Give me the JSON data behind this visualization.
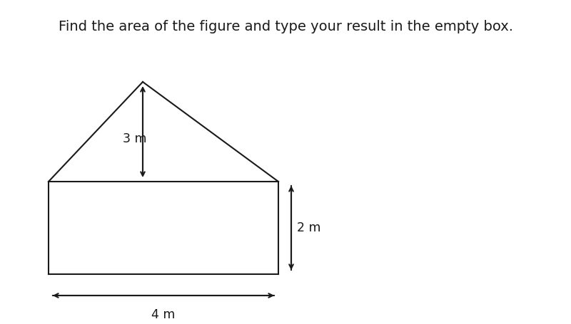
{
  "title": "Find the area of the figure and type your result in the empty box.",
  "title_fontsize": 14,
  "title_color": "#1a1a1a",
  "bg_color": "#ffffff",
  "line_color": "#1a1a1a",
  "line_width": 1.5,
  "fig_width": 8.0,
  "fig_height": 4.55,
  "dim_3m_label": "3 m",
  "dim_2m_label": "2 m",
  "dim_4m_label": "4 m",
  "annotation_fontsize": 12.5,
  "annotation_color": "#1a1a1a"
}
